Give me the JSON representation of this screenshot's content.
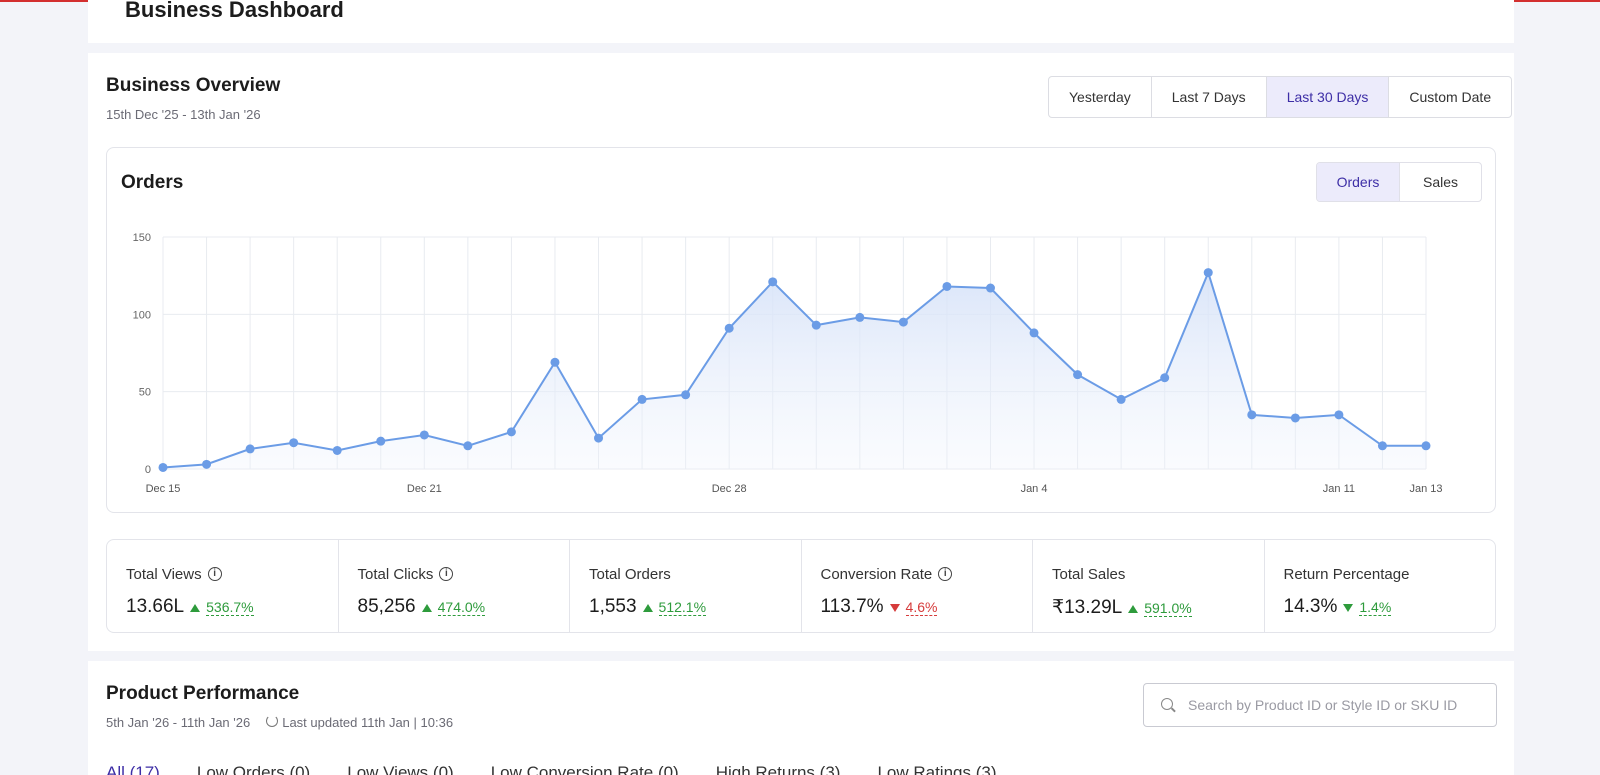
{
  "header": {
    "title": "Business Dashboard"
  },
  "overview": {
    "title": "Business Overview",
    "date_range": "15th Dec '25 - 13th Jan '26",
    "ranges": [
      "Yesterday",
      "Last 7 Days",
      "Last 30 Days",
      "Custom Date"
    ],
    "active_range": "Last 30 Days"
  },
  "chart_panel": {
    "title": "Orders",
    "toggles": [
      "Orders",
      "Sales"
    ],
    "active_toggle": "Orders"
  },
  "chart_data": {
    "type": "line",
    "x": [
      "Dec 15",
      "Dec 16",
      "Dec 17",
      "Dec 18",
      "Dec 19",
      "Dec 20",
      "Dec 21",
      "Dec 22",
      "Dec 23",
      "Dec 24",
      "Dec 25",
      "Dec 26",
      "Dec 27",
      "Dec 28",
      "Dec 29",
      "Dec 30",
      "Dec 31",
      "Jan 1",
      "Jan 2",
      "Jan 3",
      "Jan 4",
      "Jan 5",
      "Jan 6",
      "Jan 7",
      "Jan 8",
      "Jan 9",
      "Jan 10",
      "Jan 11",
      "Jan 12",
      "Jan 13"
    ],
    "x_tick_labels": [
      "Dec 15",
      "Dec 21",
      "Dec 28",
      "Jan 4",
      "Jan 11",
      "Jan 13"
    ],
    "series": [
      {
        "values": [
          1,
          3,
          13,
          17,
          12,
          18,
          22,
          15,
          24,
          69,
          20,
          45,
          48,
          91,
          121,
          93,
          98,
          95,
          118,
          117,
          88,
          61,
          45,
          59,
          127,
          35,
          33,
          35,
          15,
          15
        ],
        "color": "#6b9ce6"
      }
    ],
    "ylim": [
      0,
      150
    ],
    "y_ticks": [
      0,
      50,
      100,
      150
    ],
    "grid": true,
    "title": "",
    "xlabel": "",
    "ylabel": ""
  },
  "stats": [
    {
      "label": "Total Views",
      "info": true,
      "value": "13.66L",
      "change": "536.7%",
      "direction": "up",
      "tone": "green"
    },
    {
      "label": "Total Clicks",
      "info": true,
      "value": "85,256",
      "change": "474.0%",
      "direction": "up",
      "tone": "green"
    },
    {
      "label": "Total Orders",
      "info": false,
      "value": "1,553",
      "change": "512.1%",
      "direction": "up",
      "tone": "green"
    },
    {
      "label": "Conversion Rate",
      "info": true,
      "value": "113.7%",
      "change": "4.6%",
      "direction": "down",
      "tone": "red"
    },
    {
      "label": "Total Sales",
      "info": false,
      "value": "₹13.29L",
      "change": "591.0%",
      "direction": "up",
      "tone": "green"
    },
    {
      "label": "Return Percentage",
      "info": false,
      "value": "14.3%",
      "change": "1.4%",
      "direction": "down",
      "tone": "green"
    }
  ],
  "product_performance": {
    "title": "Product Performance",
    "date_range": "5th Jan '26 - 11th Jan '26",
    "last_updated": "Last updated 11th Jan | 10:36",
    "search_placeholder": "Search by Product ID or Style ID or SKU ID",
    "tabs": [
      "All (17)",
      "Low Orders (0)",
      "Low Views (0)",
      "Low Conversion Rate (0)",
      "High Returns (3)",
      "Low Ratings (3)"
    ],
    "active_tab": "All (17)"
  },
  "colors": {
    "accent": "#3d2ea6",
    "accent_bg": "#ecebfb",
    "line": "#6b9ce6",
    "positive": "#2e9b3c",
    "negative": "#d63b3b"
  }
}
